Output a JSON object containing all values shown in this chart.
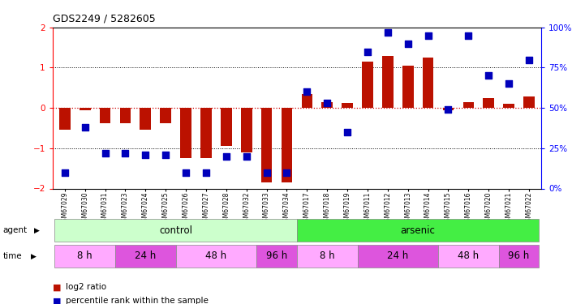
{
  "title": "GDS2249 / 5282605",
  "samples": [
    "GSM67029",
    "GSM67030",
    "GSM67031",
    "GSM67023",
    "GSM67024",
    "GSM67025",
    "GSM67026",
    "GSM67027",
    "GSM67028",
    "GSM67032",
    "GSM67033",
    "GSM67034",
    "GSM67017",
    "GSM67018",
    "GSM67019",
    "GSM67011",
    "GSM67012",
    "GSM67013",
    "GSM67014",
    "GSM67015",
    "GSM67016",
    "GSM67020",
    "GSM67021",
    "GSM67022"
  ],
  "log2_ratio": [
    -0.55,
    -0.05,
    -0.38,
    -0.38,
    -0.55,
    -0.38,
    -1.25,
    -1.25,
    -0.95,
    -1.1,
    -1.85,
    -1.85,
    0.35,
    0.15,
    0.12,
    1.15,
    1.3,
    1.05,
    1.25,
    -0.05,
    0.15,
    0.25,
    0.1,
    0.28
  ],
  "percentile": [
    10,
    38,
    22,
    22,
    21,
    21,
    10,
    10,
    20,
    20,
    10,
    10,
    60,
    53,
    35,
    85,
    97,
    90,
    95,
    49,
    95,
    70,
    65,
    80
  ],
  "agent_groups": [
    {
      "label": "control",
      "start": 0,
      "end": 11,
      "color": "#ccffcc"
    },
    {
      "label": "arsenic",
      "start": 12,
      "end": 23,
      "color": "#44ee44"
    }
  ],
  "time_groups": [
    {
      "label": "8 h",
      "start": 0,
      "end": 2,
      "color": "#ffaaff"
    },
    {
      "label": "24 h",
      "start": 3,
      "end": 5,
      "color": "#dd55dd"
    },
    {
      "label": "48 h",
      "start": 6,
      "end": 9,
      "color": "#ffaaff"
    },
    {
      "label": "96 h",
      "start": 10,
      "end": 11,
      "color": "#dd55dd"
    },
    {
      "label": "8 h",
      "start": 12,
      "end": 14,
      "color": "#ffaaff"
    },
    {
      "label": "24 h",
      "start": 15,
      "end": 18,
      "color": "#dd55dd"
    },
    {
      "label": "48 h",
      "start": 19,
      "end": 21,
      "color": "#ffaaff"
    },
    {
      "label": "96 h",
      "start": 22,
      "end": 23,
      "color": "#dd55dd"
    }
  ],
  "ylim": [
    -2,
    2
  ],
  "y2lim": [
    0,
    100
  ],
  "bar_color": "#bb1100",
  "dot_color": "#0000bb",
  "bar_width": 0.55,
  "dot_size": 28,
  "hline_color": "#cc0000",
  "dotline_color": "black"
}
